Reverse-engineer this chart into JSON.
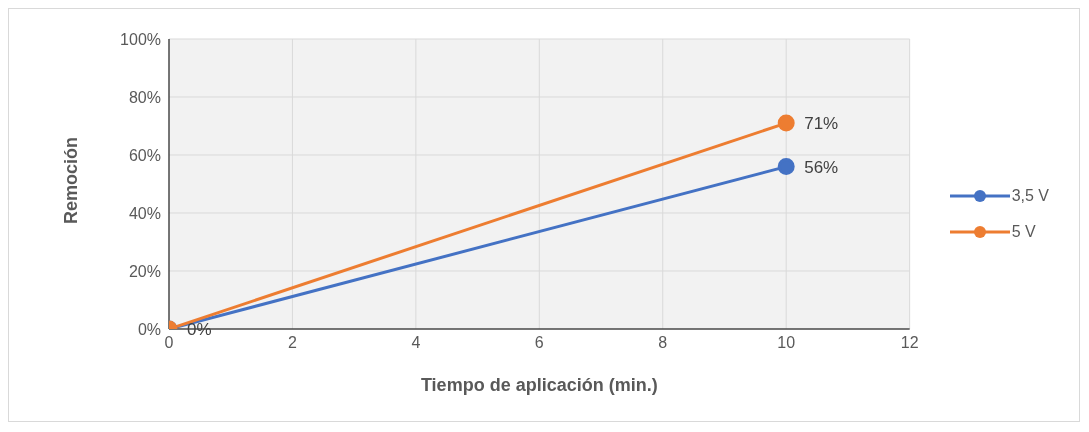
{
  "chart_data": {
    "type": "line",
    "xlabel": "Tiempo de aplicación (min.)",
    "ylabel": "Remoción",
    "x": [
      0,
      10
    ],
    "series": [
      {
        "name": "3,5 V",
        "color": "#4472c4",
        "values": [
          0,
          56
        ],
        "value_labels": [
          "0%",
          "56%"
        ]
      },
      {
        "name": "5 V",
        "color": "#ed7d31",
        "values": [
          0,
          71
        ],
        "value_labels": [
          null,
          "71%"
        ]
      }
    ],
    "xlim": [
      0,
      12
    ],
    "xticks": [
      0,
      2,
      4,
      6,
      8,
      10,
      12
    ],
    "ylim": [
      0,
      100
    ],
    "yticks": [
      {
        "value": 0,
        "label": "0%"
      },
      {
        "value": 20,
        "label": "20%"
      },
      {
        "value": 40,
        "label": "40%"
      },
      {
        "value": 60,
        "label": "60%"
      },
      {
        "value": 80,
        "label": "80%"
      },
      {
        "value": 100,
        "label": "100%"
      }
    ],
    "grid": true,
    "legend": "right",
    "marker": "circle",
    "line_style": "solid"
  }
}
